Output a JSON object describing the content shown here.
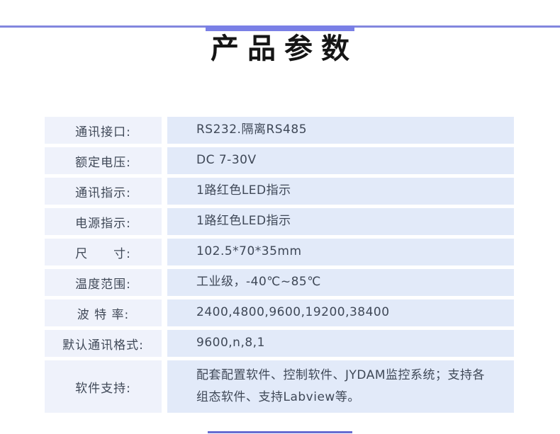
{
  "page": {
    "title": "产品参数"
  },
  "decor": {
    "top_line_color": "#8287de",
    "top_bar_color": "#7a80e6",
    "bottom_line_color": "#666cd1",
    "label_cell_color": "#eff2fb",
    "value_cell_color": "#e2eaf9",
    "text_color": "#3f4857"
  },
  "table": {
    "rows": [
      {
        "label": "通讯接口:",
        "value": "RS232.隔离RS485"
      },
      {
        "label": "额定电压:",
        "value": "DC 7-30V"
      },
      {
        "label": "通讯指示:",
        "value": "1路红色LED指示"
      },
      {
        "label": "电源指示:",
        "value": "1路红色LED指示"
      },
      {
        "label": "尺　　寸:",
        "value": "102.5*70*35mm"
      },
      {
        "label": "温度范围:",
        "value": "工业级，-40℃~85℃"
      },
      {
        "label": "波 特 率:",
        "value": "2400,4800,9600,19200,38400"
      },
      {
        "label": "默认通讯格式:",
        "value": "9600,n,8,1"
      },
      {
        "label": "软件支持:",
        "value": "配套配置软件、控制软件、JYDAM监控系统；支持各组态软件、支持Labview等。"
      }
    ]
  }
}
